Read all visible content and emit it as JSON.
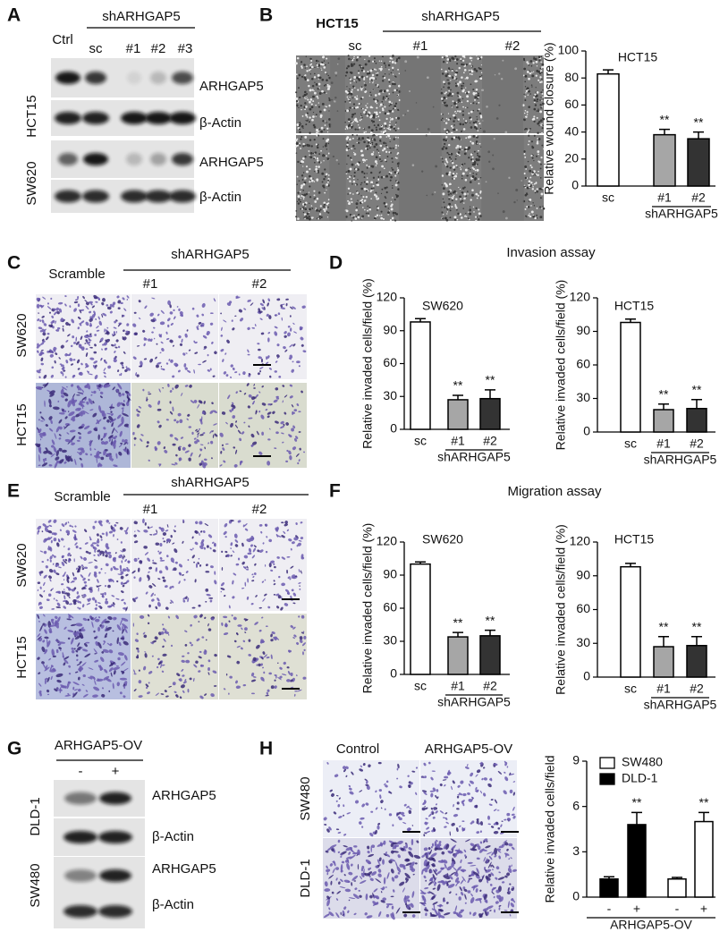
{
  "figure": {
    "A": {
      "label": "A",
      "ctrl": "Ctrl",
      "group": "shARHGAP5",
      "lanes": [
        "sc",
        "#1",
        "#2",
        "#3"
      ],
      "bands": [
        "ARHGAP5",
        "β-Actin",
        "ARHGAP5",
        "β-Actin"
      ],
      "cells": [
        "HCT15",
        "SW620"
      ]
    },
    "B": {
      "label": "B",
      "cell": "HCT15",
      "group": "shARHGAP5",
      "lanes": [
        "sc",
        "#1",
        "#2"
      ]
    },
    "C": {
      "label": "C",
      "control": "Scramble",
      "group": "shARHGAP5",
      "lanes": [
        "#1",
        "#2"
      ],
      "cells": [
        "SW620",
        "HCT15"
      ]
    },
    "D": {
      "label": "D",
      "title": "Invasion assay"
    },
    "E": {
      "label": "E",
      "control": "Scramble",
      "group": "shARHGAP5",
      "lanes": [
        "#1",
        "#2"
      ],
      "cells": [
        "SW620",
        "HCT15"
      ]
    },
    "F": {
      "label": "F",
      "title": "Migration assay"
    },
    "G": {
      "label": "G",
      "group": "ARHGAP5-OV",
      "lanes": [
        "-",
        "+"
      ],
      "bands": [
        "ARHGAP5",
        "β-Actin",
        "ARHGAP5",
        "β-Actin"
      ],
      "cells": [
        "DLD-1",
        "SW480"
      ]
    },
    "H": {
      "label": "H",
      "columns": [
        "Control",
        "ARHGAP5-OV"
      ],
      "cells": [
        "SW480",
        "DLD-1"
      ]
    }
  },
  "chart_data": [
    {
      "type": "bar",
      "title": "HCT15",
      "ylabel": "Relative wound closure (%)",
      "categories": [
        "sc",
        "#1",
        "#2"
      ],
      "group_label": "shARHGAP5",
      "values": [
        83,
        38,
        35
      ],
      "errors": [
        3,
        4,
        5
      ],
      "colors": [
        "#ffffff",
        "#a6a6a6",
        "#333333"
      ],
      "significance": [
        null,
        "**",
        "**"
      ],
      "ylim": [
        0,
        100
      ],
      "yticks": [
        0,
        20,
        40,
        60,
        80,
        100
      ]
    },
    {
      "type": "bar",
      "title": "SW620",
      "ylabel": "Relative invaded cells/field (%)",
      "categories": [
        "sc",
        "#1",
        "#2"
      ],
      "group_label": "shARHGAP5",
      "values": [
        98,
        27,
        28
      ],
      "errors": [
        3,
        4,
        8
      ],
      "colors": [
        "#ffffff",
        "#a6a6a6",
        "#333333"
      ],
      "significance": [
        null,
        "**",
        "**"
      ],
      "ylim": [
        0,
        120
      ],
      "yticks": [
        0,
        30,
        60,
        90,
        120
      ]
    },
    {
      "type": "bar",
      "title": "HCT15",
      "ylabel": "Relative invaded cells/field (%)",
      "categories": [
        "sc",
        "#1",
        "#2"
      ],
      "group_label": "shARHGAP5",
      "values": [
        98,
        20,
        21
      ],
      "errors": [
        3,
        5,
        8
      ],
      "colors": [
        "#ffffff",
        "#a6a6a6",
        "#333333"
      ],
      "significance": [
        null,
        "**",
        "**"
      ],
      "ylim": [
        0,
        120
      ],
      "yticks": [
        0,
        30,
        60,
        90,
        120
      ]
    },
    {
      "type": "bar",
      "title": "SW620",
      "ylabel": "Relative invaded cells/field (%)",
      "categories": [
        "sc",
        "#1",
        "#2"
      ],
      "group_label": "shARHGAP5",
      "values": [
        100,
        34,
        35
      ],
      "errors": [
        2,
        4,
        5
      ],
      "colors": [
        "#ffffff",
        "#a6a6a6",
        "#333333"
      ],
      "significance": [
        null,
        "**",
        "**"
      ],
      "ylim": [
        0,
        120
      ],
      "yticks": [
        0,
        30,
        60,
        90,
        120
      ]
    },
    {
      "type": "bar",
      "title": "HCT15",
      "ylabel": "Relative invaded cells/field (%)",
      "categories": [
        "sc",
        "#1",
        "#2"
      ],
      "group_label": "shARHGAP5",
      "values": [
        98,
        27,
        28
      ],
      "errors": [
        3,
        9,
        8
      ],
      "colors": [
        "#ffffff",
        "#a6a6a6",
        "#333333"
      ],
      "significance": [
        null,
        "**",
        "**"
      ],
      "ylim": [
        0,
        120
      ],
      "yticks": [
        0,
        30,
        60,
        90,
        120
      ]
    },
    {
      "type": "grouped_bar",
      "ylabel": "Relative invaded cells/field",
      "xlabel": "ARHGAP5-OV",
      "categories": [
        "-",
        "+",
        "-",
        "+"
      ],
      "series": [
        {
          "name": "SW480",
          "color": "#ffffff",
          "values": [
            null,
            null,
            1.2,
            5.0
          ],
          "errors": [
            null,
            null,
            0.1,
            0.6
          ]
        },
        {
          "name": "DLD-1",
          "color": "#000000",
          "values": [
            1.2,
            4.8,
            null,
            null
          ],
          "errors": [
            0.15,
            0.8,
            null,
            null
          ]
        }
      ],
      "significance": [
        null,
        "**",
        null,
        "**"
      ],
      "legend": "top-left",
      "ylim": [
        0,
        9
      ],
      "yticks": [
        0,
        3,
        6,
        9
      ]
    }
  ]
}
